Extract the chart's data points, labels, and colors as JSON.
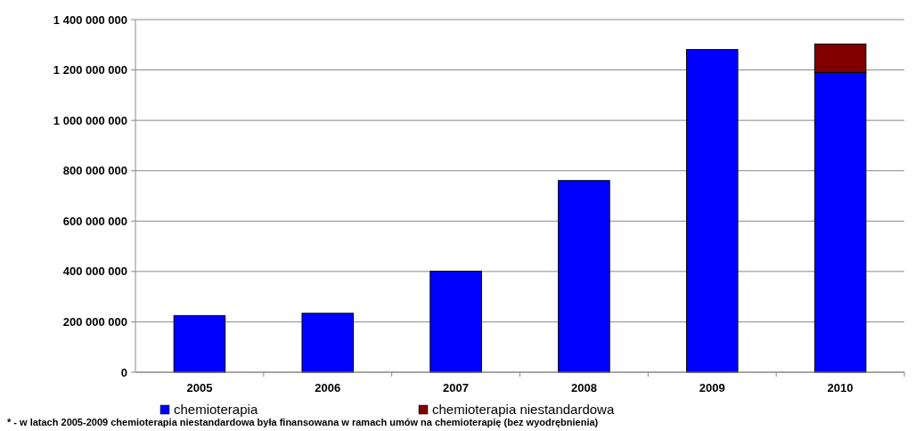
{
  "chart_data": {
    "type": "bar",
    "stacked": true,
    "categories": [
      "2005",
      "2006",
      "2007",
      "2008",
      "2009",
      "2010"
    ],
    "series": [
      {
        "name": "chemioterapia",
        "color": "#0000ff",
        "values": [
          225000000,
          234000000,
          401000000,
          761000000,
          1281000000,
          1190000000
        ]
      },
      {
        "name": "chemioterapia niestandardowa",
        "color": "#800000",
        "values": [
          null,
          null,
          null,
          null,
          null,
          113000000
        ]
      }
    ],
    "ylim": [
      0,
      1400000000
    ],
    "yticks": [
      {
        "value": 0,
        "label": "0"
      },
      {
        "value": 200000000,
        "label": "200 000 000"
      },
      {
        "value": 400000000,
        "label": "400 000 000"
      },
      {
        "value": 600000000,
        "label": "600 000 000"
      },
      {
        "value": 800000000,
        "label": "800 000 000"
      },
      {
        "value": 1000000000,
        "label": "1 000 000 000"
      },
      {
        "value": 1200000000,
        "label": "1 200 000 000"
      },
      {
        "value": 1400000000,
        "label": "1 400 000 000"
      }
    ],
    "grid": "y",
    "legend": "bottom",
    "annotations": [
      "* - w latach 2005-2009 chemioterapia niestandardowa była finansowana w ramach umów na chemioterapię (bez wyodrębnienia)"
    ]
  }
}
